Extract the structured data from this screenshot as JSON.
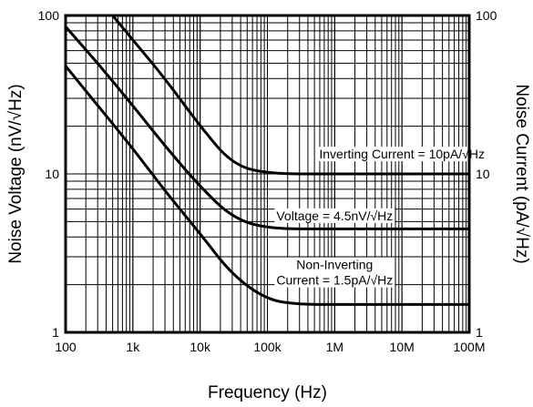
{
  "chart_data": {
    "type": "line",
    "x_scale": "log",
    "y_scale": "log",
    "xlabel": "Frequency (Hz)",
    "ylabel_left": "Noise Voltage (nV/√Hz)",
    "ylabel_right": "Noise Current (pA/√Hz)",
    "xlim": [
      100,
      100000000
    ],
    "ylim": [
      1,
      100
    ],
    "x_ticks": [
      {
        "value": 100,
        "label": "100"
      },
      {
        "value": 1000,
        "label": "1k"
      },
      {
        "value": 10000,
        "label": "10k"
      },
      {
        "value": 100000,
        "label": "100k"
      },
      {
        "value": 1000000,
        "label": "1M"
      },
      {
        "value": 10000000,
        "label": "10M"
      },
      {
        "value": 100000000,
        "label": "100M"
      }
    ],
    "y_ticks_left": [
      {
        "value": 1,
        "label": "1"
      },
      {
        "value": 10,
        "label": "10"
      },
      {
        "value": 100,
        "label": "100"
      }
    ],
    "y_ticks_right": [
      {
        "value": 1,
        "label": "1"
      },
      {
        "value": 10,
        "label": "10"
      },
      {
        "value": 100,
        "label": "100"
      }
    ],
    "grid": true,
    "series": [
      {
        "name": "Inverting Current = 10pA/√Hz",
        "points": [
          [
            500,
            100
          ],
          [
            1000,
            70
          ],
          [
            3000,
            40
          ],
          [
            10000,
            20
          ],
          [
            30000,
            11.5
          ],
          [
            100000,
            10
          ],
          [
            1000000,
            10
          ],
          [
            100000000,
            10
          ]
        ]
      },
      {
        "name": "Voltage = 4.5nV/√Hz",
        "points": [
          [
            100,
            85
          ],
          [
            300,
            50
          ],
          [
            1000,
            27
          ],
          [
            3000,
            15
          ],
          [
            10000,
            8.3
          ],
          [
            30000,
            5.3
          ],
          [
            100000,
            4.5
          ],
          [
            1000000,
            4.5
          ],
          [
            100000000,
            4.5
          ]
        ]
      },
      {
        "name": "Non-Inverting Current = 1.5pA/√Hz",
        "points": [
          [
            100,
            48
          ],
          [
            300,
            27
          ],
          [
            1000,
            14.5
          ],
          [
            3000,
            7.8
          ],
          [
            10000,
            4.2
          ],
          [
            30000,
            2.3
          ],
          [
            100000,
            1.6
          ],
          [
            300000,
            1.5
          ],
          [
            1000000,
            1.5
          ],
          [
            100000000,
            1.5
          ]
        ]
      }
    ],
    "annotations": [
      {
        "lines": [
          "Inverting Current = 10pA/√Hz"
        ],
        "at": [
          10000000,
          12.5
        ]
      },
      {
        "lines": [
          "Voltage = 4.5nV/√Hz"
        ],
        "at": [
          1000000,
          5.1
        ]
      },
      {
        "lines": [
          "Non-Inverting",
          "Current = 1.5pA/√Hz"
        ],
        "at": [
          1000000,
          2.0
        ]
      }
    ]
  }
}
